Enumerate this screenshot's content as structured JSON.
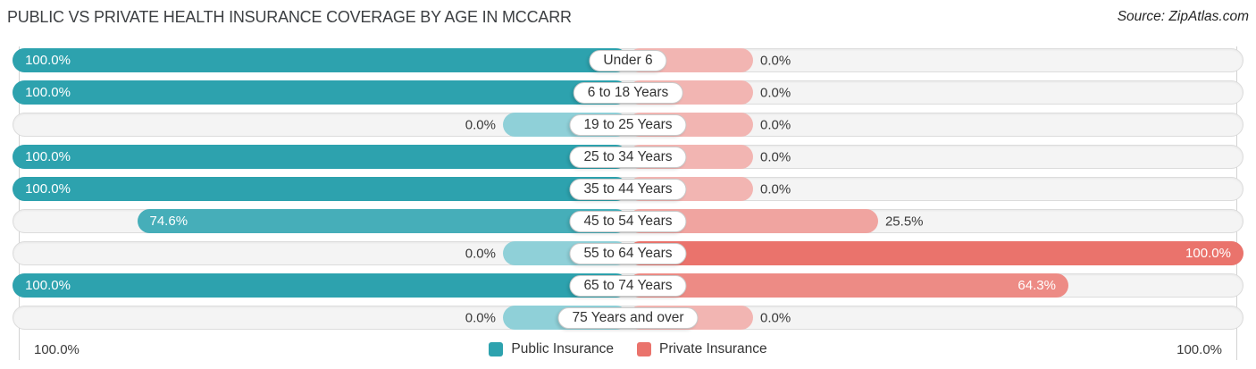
{
  "title": "PUBLIC VS PRIVATE HEALTH INSURANCE COVERAGE BY AGE IN MCCARR",
  "source": "Source: ZipAtlas.com",
  "legend": {
    "public_label": "Public Insurance",
    "private_label": "Private Insurance"
  },
  "footer": {
    "left_axis_label": "100.0%",
    "right_axis_label": "100.0%"
  },
  "palette": {
    "public_full": "#2da2ae",
    "public_light": "#8fd0d8",
    "private_full": "#ea736c",
    "private_light": "#f2b5b2",
    "track_bg": "#f4f4f4",
    "track_border": "#dcdcdc"
  },
  "chart_data": {
    "type": "bar",
    "orientation": "horizontal-diverging",
    "title": "Public vs Private Health Insurance Coverage by Age in McCarr",
    "categories": [
      "Under 6",
      "6 to 18 Years",
      "19 to 25 Years",
      "25 to 34 Years",
      "35 to 44 Years",
      "45 to 54 Years",
      "55 to 64 Years",
      "65 to 74 Years",
      "75 Years and over"
    ],
    "series": [
      {
        "name": "Public Insurance",
        "values": [
          100.0,
          100.0,
          0.0,
          100.0,
          100.0,
          74.6,
          0.0,
          100.0,
          0.0
        ]
      },
      {
        "name": "Private Insurance",
        "values": [
          0.0,
          0.0,
          0.0,
          0.0,
          0.0,
          25.5,
          100.0,
          64.3,
          0.0
        ]
      }
    ],
    "value_labels": {
      "public": [
        "100.0%",
        "100.0%",
        "0.0%",
        "100.0%",
        "100.0%",
        "74.6%",
        "0.0%",
        "100.0%",
        "0.0%"
      ],
      "private": [
        "0.0%",
        "0.0%",
        "0.0%",
        "0.0%",
        "0.0%",
        "25.5%",
        "100.0%",
        "64.3%",
        "0.0%"
      ]
    },
    "x_axis": {
      "left_max": 100.0,
      "right_max": 100.0,
      "left_max_label": "100.0%",
      "right_max_label": "100.0%"
    },
    "legend_position": "bottom",
    "grid": "vertical edge lines only"
  }
}
